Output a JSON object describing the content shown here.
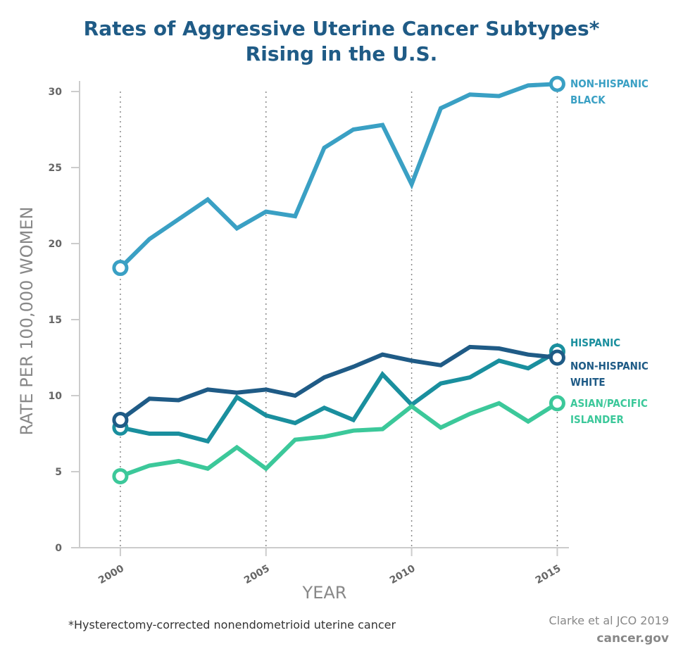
{
  "chart_data": {
    "type": "line",
    "title_lines": [
      "Rates of Aggressive Uterine Cancer Subtypes*",
      "Rising in the U.S."
    ],
    "y_label": "RATE PER 100,000 WOMEN",
    "x_label": "YEAR",
    "footnote": "*Hysterectomy-corrected nonendometrioid uterine cancer",
    "source": "Clarke et al JCO 2019",
    "site": "cancer.gov",
    "x": [
      2000,
      2001,
      2002,
      2003,
      2004,
      2005,
      2006,
      2007,
      2008,
      2009,
      2010,
      2011,
      2012,
      2013,
      2014,
      2015
    ],
    "series": [
      {
        "name": "NON-HISPANIC BLACK",
        "color": "#3aa0c4",
        "values": [
          18.4,
          20.3,
          21.6,
          22.9,
          21.0,
          22.1,
          21.8,
          26.3,
          27.5,
          27.8,
          23.9,
          28.9,
          29.8,
          29.7,
          30.4,
          30.5
        ]
      },
      {
        "name": "HISPANIC",
        "color": "#1a8f9e",
        "values": [
          7.9,
          7.5,
          7.5,
          7.0,
          9.9,
          8.7,
          8.2,
          9.2,
          8.4,
          11.4,
          9.4,
          10.8,
          11.2,
          12.3,
          11.8,
          12.9
        ]
      },
      {
        "name": "NON-HISPANIC WHITE",
        "color": "#1f5b86",
        "values": [
          8.4,
          9.8,
          9.7,
          10.4,
          10.2,
          10.4,
          10.0,
          11.2,
          11.9,
          12.7,
          12.3,
          12.0,
          13.2,
          13.1,
          12.7,
          12.5
        ]
      },
      {
        "name": "ASIAN/PACIFIC ISLANDER",
        "color": "#3cc89a",
        "values": [
          4.7,
          5.4,
          5.7,
          5.2,
          6.6,
          5.2,
          7.1,
          7.3,
          7.7,
          7.8,
          9.3,
          7.9,
          8.8,
          9.5,
          8.3,
          9.5
        ]
      }
    ],
    "xlim": [
      1998.6,
      2015.4
    ],
    "xticks": [
      2000,
      2005,
      2010,
      2015
    ],
    "ylim": [
      0,
      30
    ],
    "yticks": [
      0,
      5,
      10,
      15,
      20,
      25,
      30
    ],
    "grid": true
  }
}
